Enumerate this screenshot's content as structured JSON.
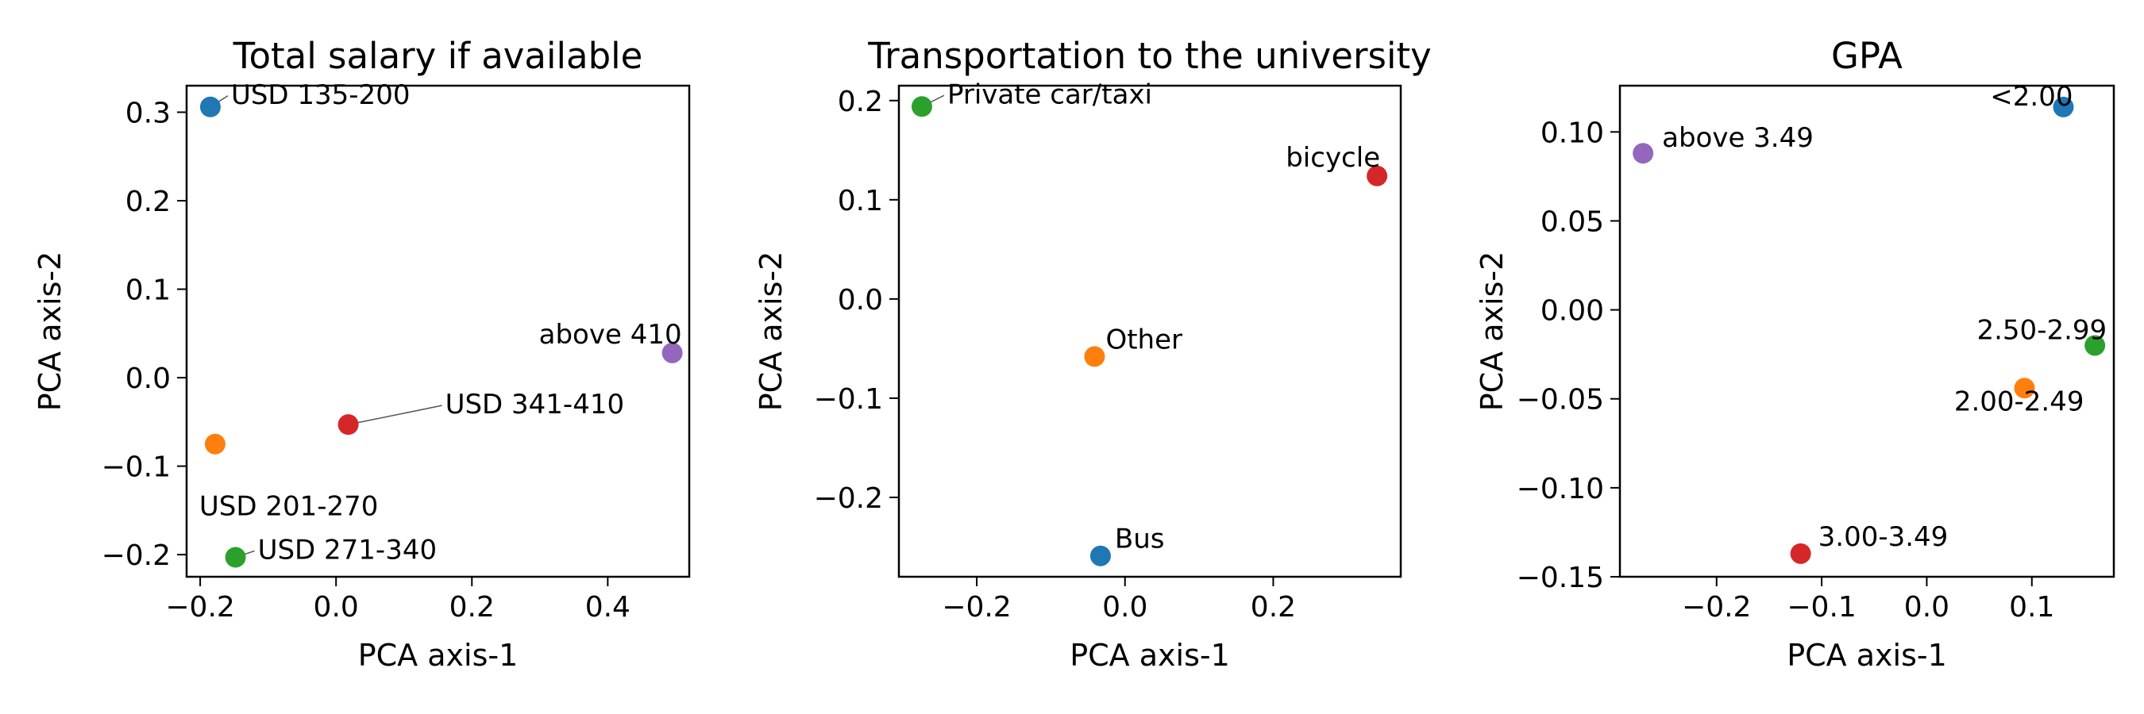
{
  "chart_data": [
    {
      "type": "scatter",
      "title": "Total salary if available",
      "xlabel": "PCA axis-1",
      "ylabel": "PCA axis-2",
      "xlim": [
        -0.22,
        0.52
      ],
      "ylim": [
        -0.225,
        0.33
      ],
      "xticks": [
        -0.2,
        0.0,
        0.2,
        0.4
      ],
      "xtick_labels": [
        "−0.2",
        "0.0",
        "0.2",
        "0.4"
      ],
      "yticks": [
        -0.2,
        -0.1,
        0.0,
        0.1,
        0.2,
        0.3
      ],
      "ytick_labels": [
        "−0.2",
        "−0.1",
        "0.0",
        "0.1",
        "0.2",
        "0.3"
      ],
      "grid": false,
      "points": [
        {
          "label": "USD 135-200",
          "x": -0.185,
          "y": 0.306,
          "color": "#1f77b4",
          "leader": true
        },
        {
          "label": "USD 201-270",
          "x": -0.178,
          "y": -0.075,
          "color": "#ff7f0e",
          "leader": false
        },
        {
          "label": "USD 271-340",
          "x": -0.148,
          "y": -0.203,
          "color": "#2ca02c",
          "leader": true
        },
        {
          "label": "USD 341-410",
          "x": 0.018,
          "y": -0.053,
          "color": "#d62728",
          "leader": true
        },
        {
          "label": "above 410",
          "x": 0.495,
          "y": 0.028,
          "color": "#9467bd",
          "leader": false
        }
      ]
    },
    {
      "type": "scatter",
      "title": "Transportation to the university",
      "xlabel": "PCA axis-1",
      "ylabel": "PCA axis-2",
      "xlim": [
        -0.305,
        0.372
      ],
      "ylim": [
        -0.28,
        0.215
      ],
      "xticks": [
        -0.2,
        0.0,
        0.2
      ],
      "xtick_labels": [
        "−0.2",
        "0.0",
        "0.2"
      ],
      "yticks": [
        -0.2,
        -0.1,
        0.0,
        0.1,
        0.2
      ],
      "ytick_labels": [
        "−0.2",
        "−0.1",
        "0.0",
        "0.1",
        "0.2"
      ],
      "grid": false,
      "points": [
        {
          "label": "Bus",
          "x": -0.033,
          "y": -0.259,
          "color": "#1f77b4",
          "leader": false
        },
        {
          "label": "Other",
          "x": -0.041,
          "y": -0.058,
          "color": "#ff7f0e",
          "leader": false
        },
        {
          "label": "Private car/taxi",
          "x": -0.274,
          "y": 0.194,
          "color": "#2ca02c",
          "leader": true
        },
        {
          "label": "bicycle",
          "x": 0.34,
          "y": 0.124,
          "color": "#d62728",
          "leader": false
        }
      ]
    },
    {
      "type": "scatter",
      "title": "GPA",
      "xlabel": "PCA axis-1",
      "ylabel": "PCA axis-2",
      "xlim": [
        -0.292,
        0.178
      ],
      "ylim": [
        -0.15,
        0.126
      ],
      "xticks": [
        -0.2,
        -0.1,
        0.0,
        0.1
      ],
      "xtick_labels": [
        "−0.2",
        "−0.1",
        "0.0",
        "0.1"
      ],
      "yticks": [
        -0.15,
        -0.1,
        -0.05,
        0.0,
        0.05,
        0.1
      ],
      "ytick_labels": [
        "−0.15",
        "−0.10",
        "−0.05",
        "0.00",
        "0.05",
        "0.10"
      ],
      "grid": false,
      "points": [
        {
          "label": "<2.00",
          "x": 0.13,
          "y": 0.114,
          "color": "#1f77b4",
          "leader": false
        },
        {
          "label": "2.00-2.49",
          "x": 0.093,
          "y": -0.044,
          "color": "#ff7f0e",
          "leader": false
        },
        {
          "label": "2.50-2.99",
          "x": 0.16,
          "y": -0.02,
          "color": "#2ca02c",
          "leader": false
        },
        {
          "label": "3.00-3.49",
          "x": -0.12,
          "y": -0.137,
          "color": "#d62728",
          "leader": false
        },
        {
          "label": "above 3.49",
          "x": -0.27,
          "y": 0.088,
          "color": "#9467bd",
          "leader": false
        }
      ]
    }
  ]
}
